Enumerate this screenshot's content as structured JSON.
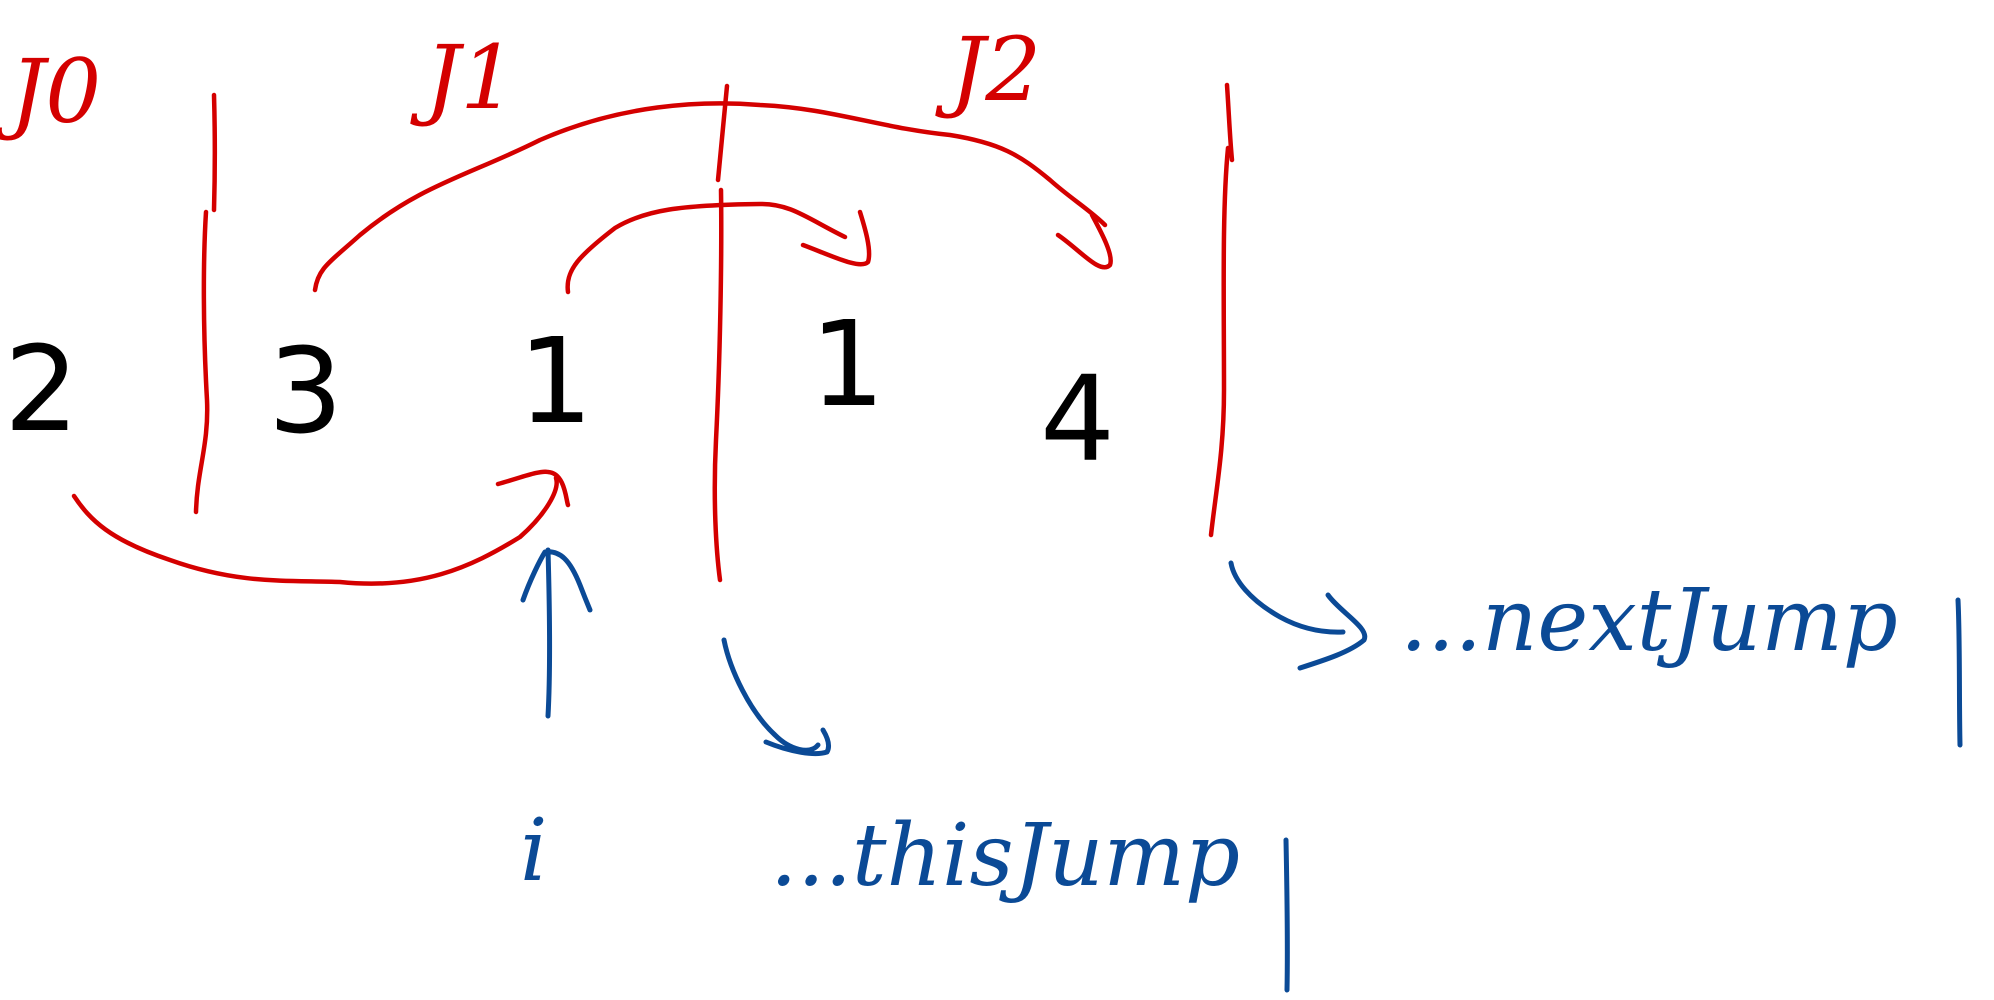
{
  "labels": {
    "jumps": [
      "J0",
      "J1",
      "J2"
    ],
    "array_values": [
      "2",
      "3",
      "1",
      "1",
      "4"
    ],
    "pointer": "i",
    "this_jump": "...thisJump",
    "next_jump": "...nextJump"
  },
  "colors": {
    "boundary": "#d40000",
    "values": "#000000",
    "annotations": "#0b4a96"
  }
}
